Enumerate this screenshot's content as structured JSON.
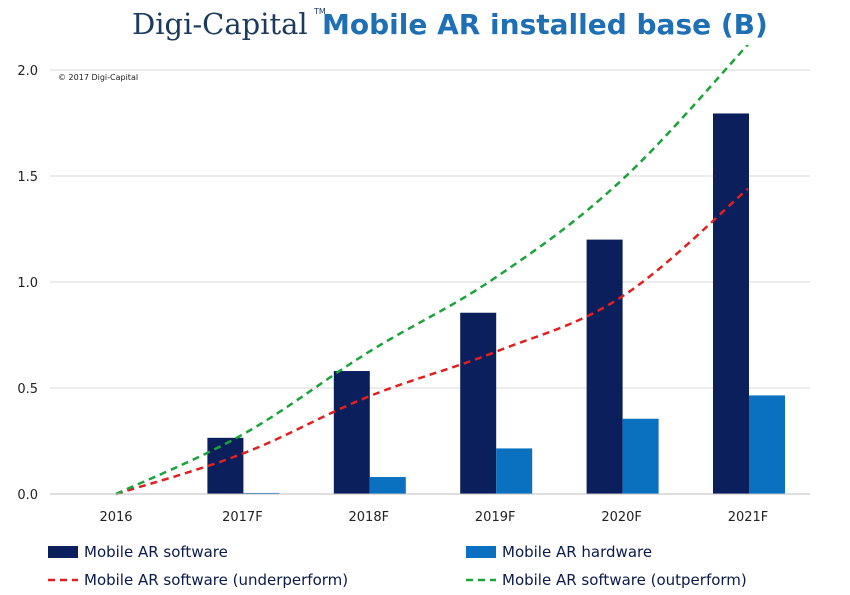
{
  "brand": {
    "name": "Digi-Capital",
    "tm": "TM"
  },
  "copyright": "© 2017 Digi-Capital",
  "chart_data": {
    "type": "bar",
    "title": "Mobile AR installed base (B)",
    "categories": [
      "2016",
      "2017F",
      "2018F",
      "2019F",
      "2020F",
      "2021F"
    ],
    "ylim": [
      0,
      2.0
    ],
    "yticks": [
      0,
      0.5,
      1.0,
      1.5,
      2.0
    ],
    "ytick_labels": [
      "0.0",
      "0.5",
      "1.0",
      "1.5",
      "2.0"
    ],
    "grid": true,
    "legend_position": "bottom",
    "series": [
      {
        "name": "Mobile AR software",
        "kind": "bar",
        "color": "#0b1f5c",
        "values": [
          0,
          0.265,
          0.58,
          0.855,
          1.2,
          1.795
        ]
      },
      {
        "name": "Mobile AR hardware",
        "kind": "bar",
        "color": "#0a70c0",
        "values": [
          0,
          0.005,
          0.08,
          0.215,
          0.355,
          0.465
        ]
      },
      {
        "name": "Mobile AR software (underperform)",
        "kind": "line",
        "style": "dashed",
        "color": "#e02020",
        "values": [
          0,
          0.19,
          0.46,
          0.67,
          0.93,
          1.44
        ]
      },
      {
        "name": "Mobile AR software (outperform)",
        "kind": "line",
        "style": "dashed",
        "color": "#1aa33a",
        "values": [
          0,
          0.28,
          0.67,
          1.02,
          1.48,
          2.12
        ]
      }
    ]
  }
}
